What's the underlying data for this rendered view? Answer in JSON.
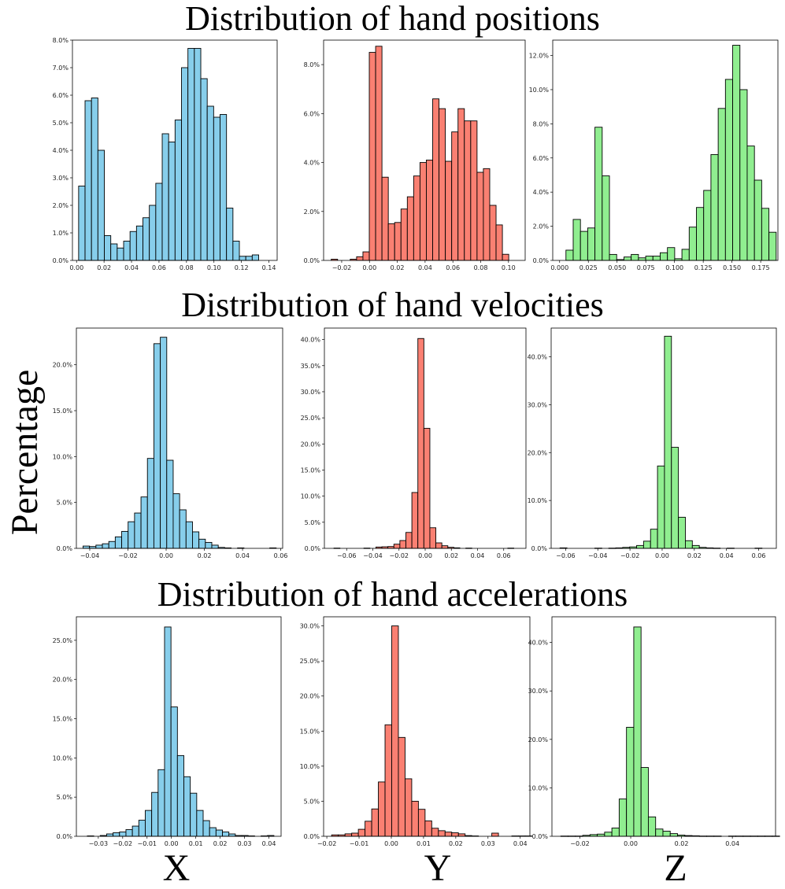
{
  "figure": {
    "row_titles": [
      "Distribution of hand positions",
      "Distribution of hand velocities",
      "Distribution of hand accelerations"
    ],
    "ylabel": "Percentage",
    "col_labels": [
      "X",
      "Y",
      "Z"
    ],
    "colors": {
      "X": "#87ceeb",
      "Y": "#fa8072",
      "Z": "#90ee90",
      "edge": "#000000"
    }
  },
  "chart_data": [
    {
      "type": "bar",
      "title": "Distribution of hand positions",
      "axis": "X",
      "xlim": [
        -0.003,
        0.146
      ],
      "ylim": [
        0,
        8.0
      ],
      "xticks": [
        0.0,
        0.02,
        0.04,
        0.06,
        0.08,
        0.1,
        0.12,
        0.14
      ],
      "xdec": 2,
      "yticks": [
        0,
        1,
        2,
        3,
        4,
        5,
        6,
        7,
        8
      ],
      "ydec": 1,
      "bin_start": 0.0015,
      "bin_width": 0.00468,
      "values": [
        2.7,
        5.8,
        5.9,
        4.0,
        0.9,
        0.6,
        0.45,
        0.7,
        1.05,
        1.25,
        1.55,
        2.0,
        2.8,
        4.6,
        4.3,
        5.1,
        7.0,
        7.7,
        7.7,
        6.6,
        5.6,
        5.2,
        5.3,
        1.9,
        0.7,
        0.15,
        0.15,
        0.2
      ]
    },
    {
      "type": "bar",
      "title": "Distribution of hand positions",
      "axis": "Y",
      "xlim": [
        -0.033,
        0.112
      ],
      "ylim": [
        0,
        9.0
      ],
      "xticks": [
        -0.02,
        0.0,
        0.02,
        0.04,
        0.06,
        0.08,
        0.1
      ],
      "xdec": 2,
      "yticks": [
        0,
        2,
        4,
        6,
        8
      ],
      "ydec": 1,
      "bin_start": -0.0275,
      "bin_width": 0.00456,
      "values": [
        0.05,
        0.0,
        0.0,
        0.05,
        0.15,
        0.35,
        8.5,
        8.75,
        3.4,
        1.5,
        1.55,
        2.1,
        2.6,
        3.45,
        4.0,
        4.1,
        6.6,
        6.2,
        4.05,
        5.25,
        6.2,
        5.7,
        5.7,
        3.6,
        3.75,
        2.25,
        1.45,
        0.25
      ]
    },
    {
      "type": "bar",
      "title": "Distribution of hand positions",
      "axis": "Z",
      "xlim": [
        -0.006,
        0.19
      ],
      "ylim": [
        0,
        12.9
      ],
      "xticks": [
        0.0,
        0.025,
        0.05,
        0.075,
        0.1,
        0.125,
        0.15,
        0.175
      ],
      "xdec": 3,
      "yticks": [
        0,
        2,
        4,
        6,
        8,
        10,
        12
      ],
      "ydec": 1,
      "bin_start": 0.0055,
      "bin_width": 0.00631,
      "values": [
        0.6,
        2.4,
        1.7,
        1.9,
        7.8,
        4.95,
        0.35,
        0.05,
        0.2,
        0.35,
        0.15,
        0.25,
        0.25,
        0.45,
        0.75,
        0.1,
        0.65,
        1.95,
        3.1,
        4.1,
        6.2,
        8.9,
        10.6,
        12.6,
        10.0,
        6.7,
        4.7,
        3.05,
        1.65
      ]
    },
    {
      "type": "bar",
      "title": "Distribution of hand velocities",
      "axis": "X",
      "xlim": [
        -0.047,
        0.061
      ],
      "ylim": [
        0,
        24.0
      ],
      "xticks": [
        -0.04,
        -0.02,
        0.0,
        0.02,
        0.04,
        0.06
      ],
      "xdec": 2,
      "yticks": [
        0,
        5,
        10,
        15,
        20
      ],
      "ydec": 1,
      "bin_start": -0.0435,
      "bin_width": 0.00337,
      "values": [
        0.25,
        0.2,
        0.35,
        0.5,
        0.75,
        1.25,
        1.85,
        2.9,
        3.85,
        5.6,
        9.8,
        22.3,
        23.0,
        9.6,
        5.95,
        4.2,
        2.9,
        1.8,
        1.0,
        0.65,
        0.35,
        0.1,
        0.05,
        0.0,
        0.05,
        0.0,
        0.0,
        0.0,
        0.0,
        0.05
      ]
    },
    {
      "type": "bar",
      "title": "Distribution of hand velocities",
      "axis": "Y",
      "xlim": [
        -0.077,
        0.077
      ],
      "ylim": [
        0,
        42.2
      ],
      "xticks": [
        -0.06,
        -0.04,
        -0.02,
        0.0,
        0.02,
        0.04,
        0.06
      ],
      "xdec": 2,
      "yticks": [
        0,
        5,
        10,
        15,
        20,
        25,
        30,
        35,
        40
      ],
      "ydec": 1,
      "bin_start": -0.0697,
      "bin_width": 0.00458,
      "values": [
        0.05,
        0,
        0,
        0,
        0,
        0.05,
        0,
        0.25,
        0.3,
        0.35,
        0.8,
        1.5,
        3.05,
        10.7,
        40.2,
        23.0,
        3.95,
        1.05,
        0.5,
        0.2,
        0.1,
        0,
        0.05,
        0,
        0,
        0,
        0,
        0,
        0,
        0.05
      ]
    },
    {
      "type": "bar",
      "title": "Distribution of hand velocities",
      "axis": "Z",
      "xlim": [
        -0.069,
        0.071
      ],
      "ylim": [
        0,
        46.0
      ],
      "xticks": [
        -0.06,
        -0.04,
        -0.02,
        0.0,
        0.02,
        0.04,
        0.06
      ],
      "xdec": 2,
      "yticks": [
        0,
        10,
        20,
        30,
        40
      ],
      "ydec": 1,
      "bin_start": -0.0635,
      "bin_width": 0.00433,
      "values": [
        0.1,
        0,
        0,
        0,
        0,
        0.05,
        0,
        0.05,
        0.1,
        0.2,
        0.3,
        0.6,
        1.5,
        4.0,
        17.2,
        44.3,
        21.1,
        6.5,
        1.6,
        0.6,
        0.2,
        0.1,
        0.05,
        0,
        0.05,
        0,
        0,
        0,
        0.05
      ]
    },
    {
      "type": "bar",
      "title": "Distribution of hand accelerations",
      "axis": "X",
      "xlim": [
        -0.039,
        0.045
      ],
      "ylim": [
        0,
        28.0
      ],
      "xticks": [
        -0.03,
        -0.02,
        -0.01,
        0.0,
        0.01,
        0.02,
        0.03,
        0.04
      ],
      "xdec": 2,
      "yticks": [
        0,
        5,
        10,
        15,
        20,
        25
      ],
      "ydec": 1,
      "bin_start": -0.0345,
      "bin_width": 0.00264,
      "values": [
        0.05,
        0.0,
        0.1,
        0.3,
        0.45,
        0.55,
        0.85,
        1.3,
        2.05,
        3.3,
        5.6,
        8.5,
        26.7,
        16.5,
        10.3,
        7.6,
        5.5,
        3.3,
        2.0,
        1.1,
        0.8,
        0.55,
        0.3,
        0.1,
        0.1,
        0.05,
        0.0,
        0.05,
        0.1
      ]
    },
    {
      "type": "bar",
      "title": "Distribution of hand accelerations",
      "axis": "Y",
      "xlim": [
        -0.021,
        0.043
      ],
      "ylim": [
        0,
        31.3
      ],
      "xticks": [
        -0.02,
        -0.01,
        0.0,
        0.01,
        0.02,
        0.03,
        0.04
      ],
      "xdec": 2,
      "yticks": [
        0,
        5,
        10,
        15,
        20,
        25,
        30
      ],
      "ydec": 1,
      "bin_start": -0.0185,
      "bin_width": 0.00207,
      "values": [
        0.2,
        0.2,
        0.35,
        0.45,
        1.0,
        2.15,
        3.9,
        7.75,
        15.9,
        30.0,
        14.1,
        8.2,
        5.0,
        3.85,
        2.2,
        1.15,
        0.8,
        0.6,
        0.5,
        0.35,
        0.1,
        0.05,
        0.0,
        0.0,
        0.45,
        0.0,
        0.0,
        0.05,
        0.05,
        0.05
      ]
    },
    {
      "type": "bar",
      "title": "Distribution of hand accelerations",
      "axis": "Z",
      "xlim": [
        -0.031,
        0.057
      ],
      "ylim": [
        0,
        45.3
      ],
      "xticks": [
        -0.02,
        0.0,
        0.02,
        0.04
      ],
      "xdec": 2,
      "yticks": [
        0,
        10,
        20,
        30,
        40
      ],
      "ydec": 1,
      "bin_start": -0.0275,
      "bin_width": 0.00287,
      "values": [
        0.05,
        0.05,
        0.05,
        0.2,
        0.35,
        0.45,
        0.85,
        1.7,
        7.7,
        22.5,
        43.2,
        14.2,
        4.0,
        1.5,
        1.05,
        0.55,
        0.25,
        0.15,
        0.1,
        0.05,
        0.05,
        0.05,
        0.0,
        0.05,
        0.05,
        0.05,
        0.05,
        0.05,
        0.05,
        0.05
      ]
    }
  ]
}
